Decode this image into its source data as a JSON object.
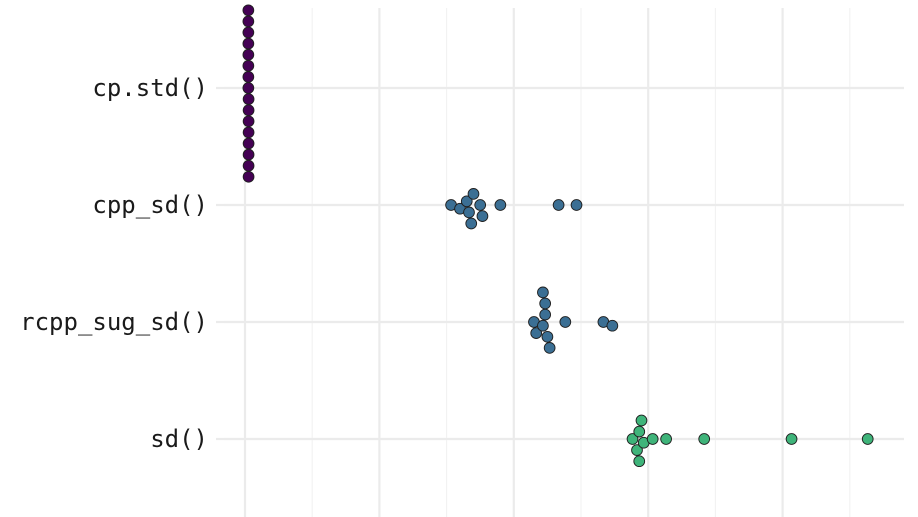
{
  "chart_data": {
    "type": "scatter",
    "title": "",
    "xlabel": "",
    "ylabel": "",
    "x_ticks_visible": false,
    "grid": true,
    "legend": "none",
    "categories": [
      "cp.std()",
      "cpp_sd()",
      "rcpp_sug_sd()",
      "sd()"
    ],
    "series": [
      {
        "category": "cp.std()",
        "color": "#440154",
        "x": [
          0.15,
          0.16,
          0.15,
          0.16,
          0.15,
          0.16,
          0.15,
          0.16,
          0.15,
          0.16,
          0.15,
          0.16,
          0.15,
          0.16,
          0.15,
          0.16
        ]
      },
      {
        "category": "cpp_sd()",
        "color": "#3b6f94",
        "x": [
          9.2,
          9.6,
          9.9,
          10.0,
          10.2,
          10.1,
          10.5,
          10.6,
          11.4,
          14.0,
          14.8
        ]
      },
      {
        "category": "rcpp_sug_sd()",
        "color": "#3b6f94",
        "x": [
          12.9,
          13.0,
          13.3,
          13.4,
          13.5,
          13.4,
          13.6,
          13.3,
          14.3,
          16.0,
          16.4
        ]
      },
      {
        "category": "sd()",
        "color": "#3fb47a",
        "x": [
          17.3,
          17.5,
          17.6,
          17.7,
          17.6,
          17.8,
          18.2,
          18.8,
          20.5,
          24.4,
          27.8
        ]
      }
    ]
  }
}
